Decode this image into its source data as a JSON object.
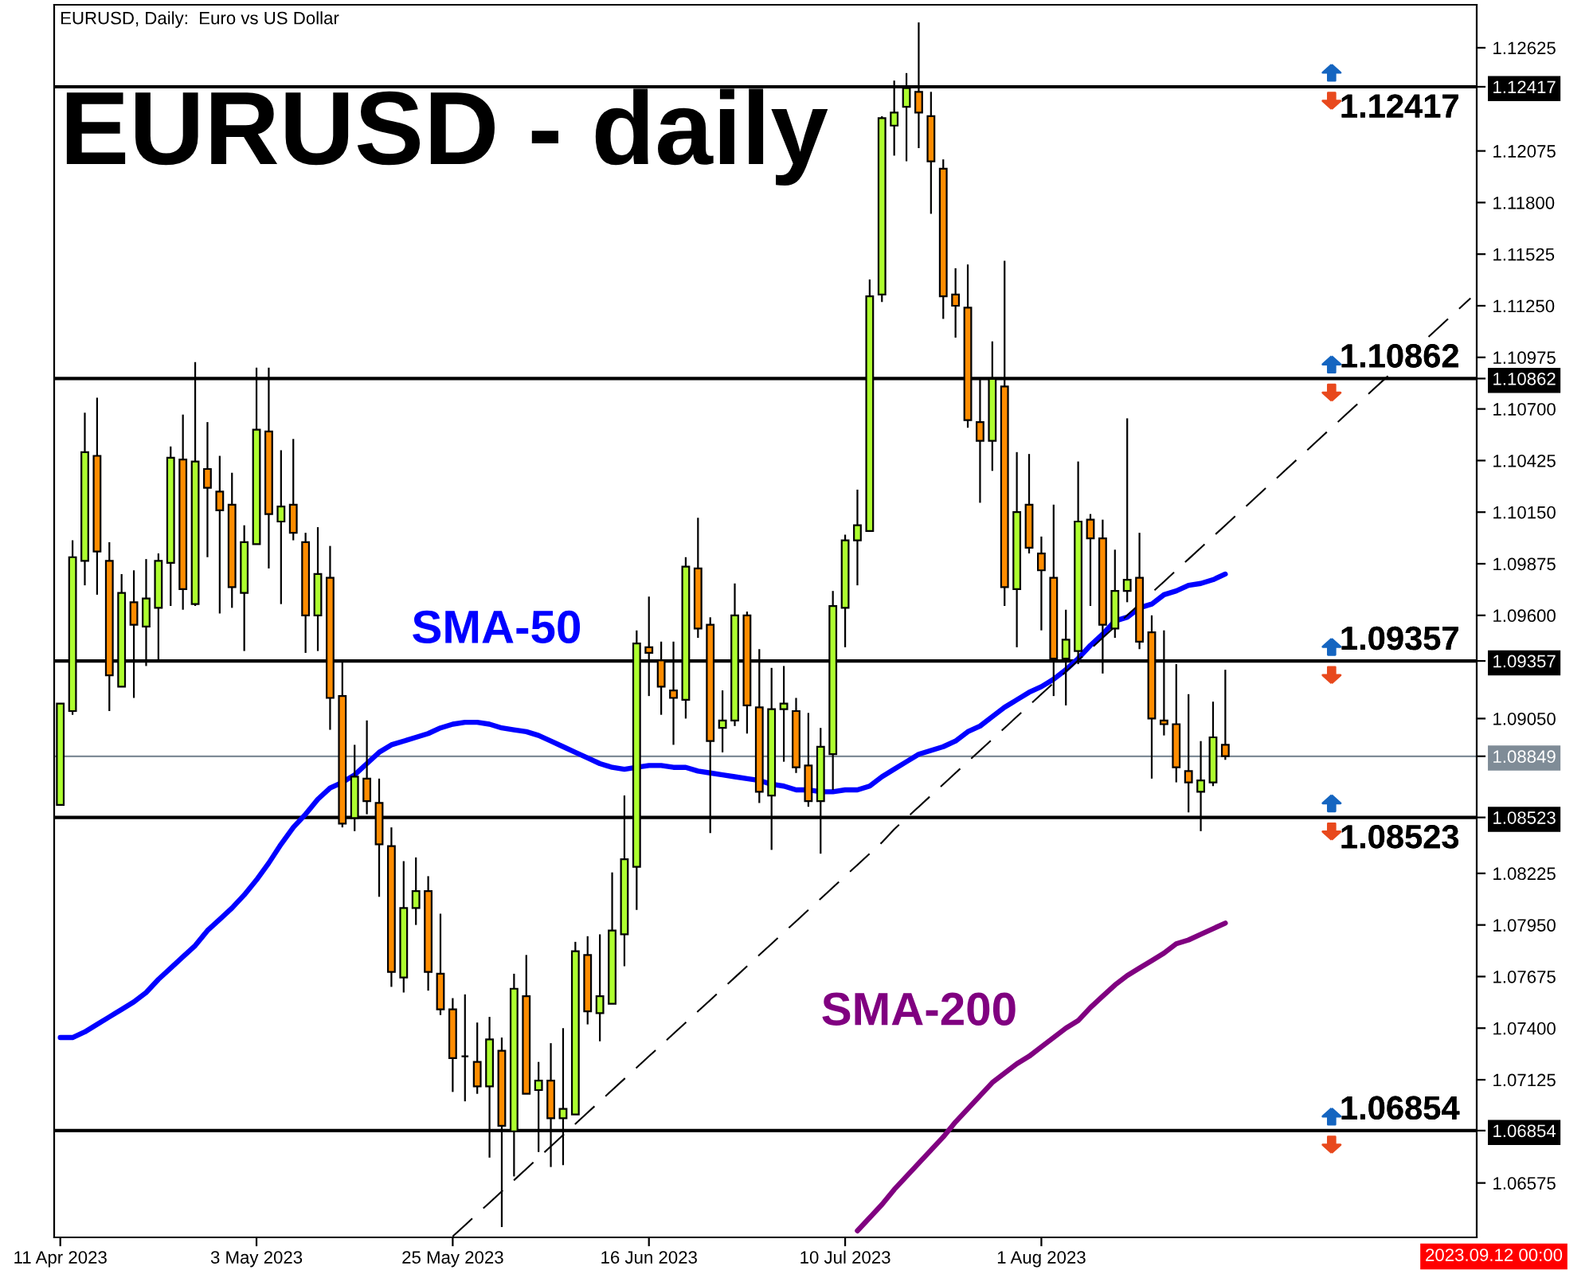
{
  "chart_data": {
    "type": "candlestick",
    "title": "EURUSD - daily",
    "subtitle": "EURUSD, Daily:  Euro vs US Dollar",
    "annotations": [
      "2023.09.12 00:00"
    ],
    "categories": [
      "11 Apr 2023",
      null,
      null,
      null,
      null,
      null,
      null,
      null,
      null,
      null,
      null,
      null,
      null,
      null,
      null,
      null,
      "3 May 2023",
      null,
      null,
      null,
      null,
      null,
      null,
      null,
      null,
      null,
      null,
      null,
      null,
      null,
      null,
      null,
      "25 May 2023",
      null,
      null,
      null,
      null,
      null,
      null,
      null,
      null,
      null,
      null,
      null,
      null,
      null,
      null,
      null,
      "16 Jun 2023",
      null,
      null,
      null,
      null,
      null,
      null,
      null,
      null,
      null,
      null,
      null,
      null,
      null,
      null,
      null,
      "10 Jul 2023",
      null,
      null,
      null,
      null,
      null,
      null,
      null,
      null,
      null,
      null,
      null,
      null,
      null,
      null,
      null,
      "1 Aug 2023",
      null,
      null,
      null,
      null,
      null,
      null,
      null,
      null,
      null,
      null,
      null,
      null,
      null,
      null,
      null,
      null,
      null,
      null,
      null,
      null,
      null,
      null,
      null,
      null,
      null,
      null,
      null,
      null,
      null,
      null,
      null,
      null,
      null,
      null,
      null
    ],
    "ohlc": [
      [
        1.0859,
        1.0913,
        1.0859,
        1.0913
      ],
      [
        1.0909,
        1.1,
        1.0907,
        1.0991
      ],
      [
        1.0989,
        1.1068,
        1.0976,
        1.1047
      ],
      [
        1.1045,
        1.1076,
        1.0971,
        1.0994
      ],
      [
        1.0989,
        1.0999,
        1.0909,
        1.0928
      ],
      [
        1.0922,
        1.0982,
        1.0922,
        1.0972
      ],
      [
        1.0967,
        1.0984,
        1.0916,
        1.0955
      ],
      [
        1.0954,
        1.099,
        1.0933,
        1.0969
      ],
      [
        1.0964,
        1.0993,
        1.0936,
        1.0989
      ],
      [
        1.0988,
        1.105,
        1.0965,
        1.1044
      ],
      [
        1.1043,
        1.1067,
        1.0963,
        1.0974
      ],
      [
        1.0966,
        1.1095,
        1.0965,
        1.1042
      ],
      [
        1.1038,
        1.1063,
        1.0991,
        1.1028
      ],
      [
        1.1026,
        1.1045,
        1.0961,
        1.1016
      ],
      [
        1.1019,
        1.1036,
        1.0964,
        1.0975
      ],
      [
        1.0972,
        1.1008,
        1.0941,
        1.0999
      ],
      [
        1.0998,
        1.1092,
        1.0998,
        1.1059
      ],
      [
        1.1058,
        1.1092,
        1.0985,
        1.1014
      ],
      [
        1.101,
        1.1048,
        1.0966,
        1.1018
      ],
      [
        1.1019,
        1.1054,
        1.1,
        1.1004
      ],
      [
        1.0999,
        1.1004,
        1.094,
        1.096
      ],
      [
        1.096,
        1.1007,
        1.0941,
        1.0982
      ],
      [
        1.098,
        1.0997,
        1.0899,
        1.0916
      ],
      [
        1.0917,
        1.0935,
        1.0847,
        1.0849
      ],
      [
        1.0852,
        1.0891,
        1.0845,
        1.0874
      ],
      [
        1.0873,
        1.0904,
        1.0854,
        1.0861
      ],
      [
        1.086,
        1.0873,
        1.081,
        1.0838
      ],
      [
        1.0837,
        1.0847,
        1.0762,
        1.077
      ],
      [
        1.0767,
        1.0829,
        1.0759,
        1.0804
      ],
      [
        1.0804,
        1.0831,
        1.0795,
        1.0813
      ],
      [
        1.0813,
        1.0821,
        1.076,
        1.077
      ],
      [
        1.0769,
        1.0801,
        1.0747,
        1.075
      ],
      [
        1.075,
        1.0756,
        1.0706,
        1.0724
      ],
      [
        1.0725,
        1.0758,
        1.0701,
        1.0725
      ],
      [
        1.0722,
        1.0743,
        1.0705,
        1.0709
      ],
      [
        1.0709,
        1.0746,
        1.0671,
        1.0734
      ],
      [
        1.0728,
        1.0735,
        1.0634,
        1.0688
      ],
      [
        1.0685,
        1.0769,
        1.0661,
        1.0761
      ],
      [
        1.0757,
        1.0779,
        1.0705,
        1.0705
      ],
      [
        1.0707,
        1.0722,
        1.0674,
        1.0712
      ],
      [
        1.0712,
        1.0732,
        1.0666,
        1.0692
      ],
      [
        1.0692,
        1.074,
        1.0667,
        1.0697
      ],
      [
        1.0694,
        1.0786,
        1.0694,
        1.0781
      ],
      [
        1.0779,
        1.0789,
        1.0742,
        1.0749
      ],
      [
        1.0748,
        1.079,
        1.0733,
        1.0757
      ],
      [
        1.0753,
        1.0823,
        1.0753,
        1.0792
      ],
      [
        1.079,
        1.0864,
        1.0773,
        1.083
      ],
      [
        1.0826,
        1.0952,
        1.0803,
        1.0945
      ],
      [
        1.0943,
        1.097,
        1.0917,
        1.094
      ],
      [
        1.0936,
        1.0946,
        1.0907,
        1.0922
      ],
      [
        1.092,
        1.0946,
        1.0891,
        1.0916
      ],
      [
        1.0915,
        1.0991,
        1.0905,
        1.0986
      ],
      [
        1.0985,
        1.1012,
        1.0948,
        1.0953
      ],
      [
        1.0955,
        1.0959,
        1.0844,
        1.0893
      ],
      [
        1.09,
        1.092,
        1.0887,
        1.0904
      ],
      [
        1.0904,
        1.0977,
        1.0901,
        1.096
      ],
      [
        1.096,
        1.0962,
        1.0897,
        1.0912
      ],
      [
        1.0911,
        1.0942,
        1.086,
        1.0866
      ],
      [
        1.0864,
        1.0932,
        1.0835,
        1.091
      ],
      [
        1.091,
        1.0933,
        1.0882,
        1.0913
      ],
      [
        1.0909,
        1.0916,
        1.0876,
        1.0879
      ],
      [
        1.088,
        1.0908,
        1.0858,
        1.0861
      ],
      [
        1.0861,
        1.09,
        1.0833,
        1.089
      ],
      [
        1.0886,
        1.0973,
        1.0867,
        1.0965
      ],
      [
        1.0964,
        1.1003,
        1.0943,
        1.1
      ],
      [
        1.1,
        1.1027,
        1.0976,
        1.1008
      ],
      [
        1.1005,
        1.1139,
        1.1005,
        1.113
      ],
      [
        1.1131,
        1.1226,
        1.1127,
        1.1225
      ],
      [
        1.1221,
        1.1245,
        1.1205,
        1.1228
      ],
      [
        1.1231,
        1.1249,
        1.1202,
        1.1241
      ],
      [
        1.1239,
        1.1276,
        1.1209,
        1.1228
      ],
      [
        1.1226,
        1.1239,
        1.1174,
        1.1202
      ],
      [
        1.1198,
        1.1203,
        1.1118,
        1.113
      ],
      [
        1.1131,
        1.1145,
        1.1108,
        1.1125
      ],
      [
        1.1124,
        1.1147,
        1.106,
        1.1064
      ],
      [
        1.1063,
        1.1086,
        1.102,
        1.1053
      ],
      [
        1.1053,
        1.1106,
        1.1037,
        1.1086
      ],
      [
        1.1082,
        1.1149,
        1.0965,
        1.0975
      ],
      [
        1.0974,
        1.1047,
        1.0943,
        1.1015
      ],
      [
        1.1019,
        1.1046,
        1.0993,
        1.0996
      ],
      [
        1.0993,
        1.1002,
        1.0952,
        1.0984
      ],
      [
        1.098,
        1.1019,
        1.0917,
        1.0937
      ],
      [
        1.0937,
        1.0963,
        1.0912,
        1.0947
      ],
      [
        1.0941,
        1.1042,
        1.0934,
        1.101
      ],
      [
        1.1011,
        1.1014,
        1.0965,
        1.1001
      ],
      [
        1.1001,
        1.1011,
        1.0929,
        1.0955
      ],
      [
        1.0953,
        1.0995,
        1.0948,
        1.0973
      ],
      [
        1.0973,
        1.1065,
        1.0967,
        1.0979
      ],
      [
        1.098,
        1.1004,
        1.0942,
        1.0946
      ],
      [
        1.0951,
        1.096,
        1.0873,
        1.0905
      ],
      [
        1.0904,
        1.0952,
        1.0896,
        1.0902
      ],
      [
        1.0902,
        1.0934,
        1.0871,
        1.0879
      ],
      [
        1.0877,
        1.0918,
        1.0855,
        1.0871
      ],
      [
        1.0866,
        1.0893,
        1.0845,
        1.0872
      ],
      [
        1.0871,
        1.0914,
        1.0869,
        1.0895
      ],
      [
        1.0891,
        1.0931,
        1.0883,
        1.0885
      ],
      null,
      null,
      null,
      null,
      null,
      null,
      null,
      null,
      null,
      null,
      null,
      null,
      null,
      null,
      null,
      null,
      null,
      null,
      null,
      null
    ],
    "colors": [
      "#adff2f",
      "#adff2f",
      "#adff2f",
      "#ff8c00",
      "#ff8c00",
      "#adff2f",
      "#ff8c00",
      "#adff2f",
      "#adff2f",
      "#adff2f",
      "#ff8c00",
      "#adff2f",
      "#ff8c00",
      "#ff8c00",
      "#ff8c00",
      "#adff2f",
      "#adff2f",
      "#ff8c00",
      "#adff2f",
      "#ff8c00",
      "#ff8c00",
      "#adff2f",
      "#ff8c00",
      "#ff8c00",
      "#adff2f",
      "#ff8c00",
      "#ff8c00",
      "#ff8c00",
      "#adff2f",
      "#adff2f",
      "#ff8c00",
      "#ff8c00",
      "#ff8c00",
      "#000000",
      "#ff8c00",
      "#adff2f",
      "#ff8c00",
      "#adff2f",
      "#ff8c00",
      "#adff2f",
      "#ff8c00",
      "#adff2f",
      "#adff2f",
      "#ff8c00",
      "#adff2f",
      "#adff2f",
      "#adff2f",
      "#adff2f",
      "#ff8c00",
      "#ff8c00",
      "#ff8c00",
      "#adff2f",
      "#ff8c00",
      "#ff8c00",
      "#adff2f",
      "#adff2f",
      "#ff8c00",
      "#ff8c00",
      "#adff2f",
      "#adff2f",
      "#ff8c00",
      "#ff8c00",
      "#adff2f",
      "#adff2f",
      "#adff2f",
      "#adff2f",
      "#adff2f",
      "#adff2f",
      "#adff2f",
      "#adff2f",
      "#ff8c00",
      "#ff8c00",
      "#ff8c00",
      "#ff8c00",
      "#ff8c00",
      "#ff8c00",
      "#adff2f",
      "#ff8c00",
      "#adff2f",
      "#ff8c00",
      "#ff8c00",
      "#ff8c00",
      "#adff2f",
      "#adff2f",
      "#ff8c00",
      "#ff8c00",
      "#adff2f",
      "#adff2f",
      "#ff8c00",
      "#ff8c00",
      "#ff8c00",
      "#ff8c00",
      "#ff8c00",
      "#adff2f",
      "#adff2f",
      "#ff8c00",
      null,
      null,
      null,
      null,
      null,
      null,
      null,
      null,
      null,
      null,
      null,
      null,
      null,
      null,
      null,
      null,
      null,
      null,
      null,
      null
    ],
    "series": [
      {
        "name": "SMA-50",
        "type": "line",
        "color": "#0000ff",
        "values": [
          1.0735,
          1.0735,
          1.0738,
          1.0742,
          1.0746,
          1.075,
          1.0754,
          1.0759,
          1.0766,
          1.0772,
          1.0778,
          1.0784,
          1.0792,
          1.0798,
          1.0804,
          1.0811,
          1.0819,
          1.0828,
          1.0838,
          1.0847,
          1.0854,
          1.0862,
          1.0868,
          1.0871,
          1.0875,
          1.0881,
          1.0887,
          1.0891,
          1.0893,
          1.0895,
          1.0897,
          1.09,
          1.0902,
          1.0903,
          1.0903,
          1.0902,
          1.09,
          1.0899,
          1.0898,
          1.0896,
          1.0893,
          1.089,
          1.0887,
          1.0884,
          1.0881,
          1.0879,
          1.0878,
          1.0879,
          1.088,
          1.088,
          1.0879,
          1.0879,
          1.0877,
          1.0876,
          1.0875,
          1.0874,
          1.0873,
          1.0872,
          1.087,
          1.0869,
          1.0867,
          1.0867,
          1.0866,
          1.0866,
          1.0867,
          1.0867,
          1.0869,
          1.0874,
          1.0878,
          1.0882,
          1.0886,
          1.0888,
          1.089,
          1.0893,
          1.0898,
          1.0901,
          1.0906,
          1.0911,
          1.0915,
          1.0919,
          1.0922,
          1.0926,
          1.0931,
          1.0937,
          1.0944,
          1.095,
          1.0957,
          1.0959,
          1.0964,
          1.0966,
          1.0971,
          1.0973,
          1.0976,
          1.0977,
          1.0979,
          1.0982,
          null,
          null,
          null,
          null,
          null,
          null,
          null,
          null,
          null,
          null,
          null,
          null,
          null,
          null,
          null,
          null,
          null,
          null,
          null,
          null
        ]
      },
      {
        "name": "SMA-200",
        "type": "line",
        "color": "#800080",
        "values": [
          null,
          null,
          null,
          null,
          null,
          null,
          null,
          null,
          null,
          null,
          null,
          null,
          null,
          null,
          null,
          null,
          null,
          null,
          null,
          null,
          null,
          null,
          null,
          null,
          null,
          null,
          null,
          null,
          null,
          null,
          null,
          null,
          null,
          null,
          null,
          null,
          null,
          null,
          null,
          null,
          null,
          null,
          null,
          null,
          null,
          null,
          null,
          null,
          null,
          null,
          null,
          null,
          null,
          null,
          null,
          null,
          null,
          null,
          null,
          null,
          null,
          null,
          null,
          null,
          null,
          1.0632,
          1.0639,
          1.0646,
          1.0654,
          1.0661,
          1.0668,
          1.0675,
          1.0682,
          1.069,
          1.0697,
          1.0704,
          1.0711,
          1.0716,
          1.0721,
          1.0725,
          1.073,
          1.0735,
          1.074,
          1.0744,
          1.0751,
          1.0757,
          1.0763,
          1.0768,
          1.0772,
          1.0776,
          1.078,
          1.0785,
          1.0787,
          1.079,
          1.0793,
          1.0796,
          null,
          null,
          null,
          null,
          null,
          null,
          null,
          null,
          null,
          null,
          null,
          null,
          null,
          null,
          null,
          null,
          null,
          null,
          null,
          null
        ]
      },
      {
        "type": "line",
        "color": "#000000",
        "line_style": "dashed",
        "values": [
          null,
          null,
          null,
          null,
          null,
          null,
          null,
          null,
          null,
          null,
          null,
          null,
          null,
          null,
          null,
          null,
          null,
          null,
          null,
          null,
          null,
          null,
          null,
          null,
          null,
          null,
          null,
          null,
          null,
          null,
          null,
          null,
          1.0629,
          1.0635,
          1.0641,
          1.0647,
          1.0653,
          1.0659,
          1.0665,
          1.0671,
          1.0677,
          1.0683,
          1.0689,
          1.0695,
          1.0701,
          1.0707,
          1.0713,
          1.0719,
          1.0725,
          1.0731,
          1.0737,
          1.0743,
          1.0749,
          1.0755,
          1.0761,
          1.0767,
          1.0773,
          1.0779,
          1.0785,
          1.0791,
          1.0797,
          1.0803,
          1.0809,
          1.0815,
          1.0821,
          1.0827,
          1.0833,
          1.0839,
          1.0846,
          1.0852,
          1.0858,
          1.0864,
          1.087,
          1.0876,
          1.0882,
          1.0888,
          1.0894,
          1.09,
          1.0906,
          1.0912,
          1.0918,
          1.0924,
          1.093,
          1.0936,
          1.0942,
          1.0948,
          1.0954,
          1.096,
          1.0966,
          1.0972,
          1.0978,
          1.0984,
          1.099,
          1.0996,
          1.1002,
          1.1008,
          1.1014,
          1.102,
          1.1026,
          1.1032,
          1.1038,
          1.1044,
          1.105,
          1.1056,
          1.1062,
          1.1068,
          1.1074,
          1.108,
          1.1086,
          1.1092,
          1.1099,
          1.1105,
          1.1111,
          1.1117,
          1.1123,
          1.1129
        ]
      }
    ],
    "ylim": [
      1.06285,
      1.12854
    ],
    "yticks": [
      {
        "value": 1.12625,
        "label": "1.12625"
      },
      {
        "value": 1.12417,
        "label": "1.12417"
      },
      {
        "value": 1.12075,
        "label": "1.12075"
      },
      {
        "value": 1.118,
        "label": "1.11800"
      },
      {
        "value": 1.11525,
        "label": "1.11525"
      },
      {
        "value": 1.1125,
        "label": "1.11250"
      },
      {
        "value": 1.10975,
        "label": "1.10975"
      },
      {
        "value": 1.10862,
        "label": "1.10862"
      },
      {
        "value": 1.107,
        "label": "1.10700"
      },
      {
        "value": 1.10425,
        "label": "1.10425"
      },
      {
        "value": 1.1015,
        "label": "1.10150"
      },
      {
        "value": 1.09875,
        "label": "1.09875"
      },
      {
        "value": 1.096,
        "label": "1.09600"
      },
      {
        "value": 1.09357,
        "label": "1.09357"
      },
      {
        "value": 1.0905,
        "label": "1.09050"
      },
      {
        "value": 1.08849,
        "label": "1.08849"
      },
      {
        "value": 1.08523,
        "label": "1.08523"
      },
      {
        "value": 1.08225,
        "label": "1.08225"
      },
      {
        "value": 1.0795,
        "label": "1.07950"
      },
      {
        "value": 1.07675,
        "label": "1.07675"
      },
      {
        "value": 1.074,
        "label": "1.07400"
      },
      {
        "value": 1.07125,
        "label": "1.07125"
      },
      {
        "value": 1.06854,
        "label": "1.06854"
      },
      {
        "value": 1.06575,
        "label": "1.06575"
      }
    ],
    "ref_lines": [
      {
        "axis": "y",
        "value": 1.12417,
        "label": "1.12417",
        "color": "#000000"
      },
      {
        "axis": "y",
        "value": 1.10862,
        "label": "1.10862",
        "color": "#000000"
      },
      {
        "axis": "y",
        "value": 1.09357,
        "label": "1.09357",
        "color": "#000000"
      },
      {
        "axis": "y",
        "value": 1.08523,
        "label": "1.08523",
        "color": "#000000"
      },
      {
        "axis": "y",
        "value": 1.06854,
        "label": "1.06854",
        "color": "#000000"
      },
      {
        "axis": "y",
        "value": 1.08849,
        "color": "#7f8c97"
      }
    ],
    "grid": false
  }
}
